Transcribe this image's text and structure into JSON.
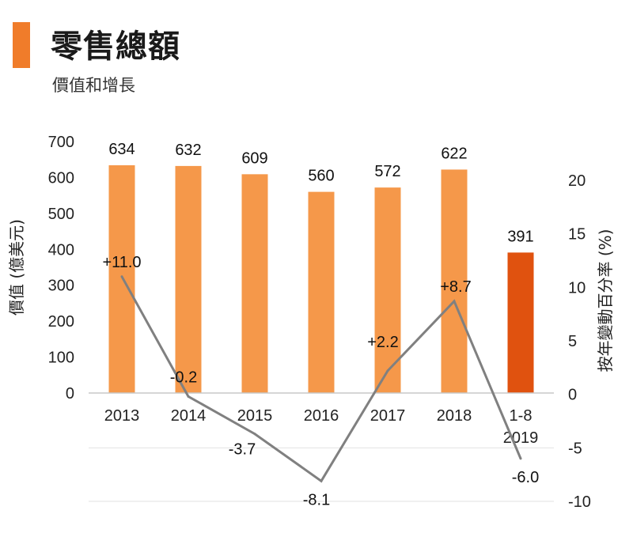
{
  "header": {
    "title": "零售總額",
    "subtitle": "價值和增長",
    "accent_color": "#f07c2a"
  },
  "chart_data": {
    "type": "bar+line",
    "categories": [
      "2013",
      "2014",
      "2015",
      "2016",
      "2017",
      "2018",
      [
        "1-8",
        "2019"
      ]
    ],
    "bar_series": {
      "name": "價值 (億美元)",
      "values": [
        634,
        632,
        609,
        560,
        572,
        622,
        391
      ],
      "labels": [
        "634",
        "632",
        "609",
        "560",
        "572",
        "622",
        "391"
      ],
      "color": "#f5984a",
      "highlight_color": "#e0520f",
      "highlight_index": 6
    },
    "line_series": {
      "name": "按年變動百分率 (%)",
      "values": [
        11.0,
        -0.2,
        -3.7,
        -8.1,
        2.2,
        8.7,
        -6.0
      ],
      "labels": [
        "+11.0",
        "-0.2",
        "-3.7",
        "-8.1",
        "+2.2",
        "+8.7",
        "-6.0"
      ],
      "color": "#808080"
    },
    "left_axis": {
      "label": "價值 (億美元)",
      "ticks": [
        "700",
        "600",
        "500",
        "400",
        "300",
        "200",
        "100",
        "0"
      ],
      "range": [
        0,
        700
      ]
    },
    "right_axis": {
      "label": "按年變動百分率 (%)",
      "ticks": [
        "20",
        "15",
        "10",
        "5",
        "0",
        "-5",
        "-10"
      ],
      "range": [
        -10,
        20
      ]
    },
    "grid": true
  }
}
